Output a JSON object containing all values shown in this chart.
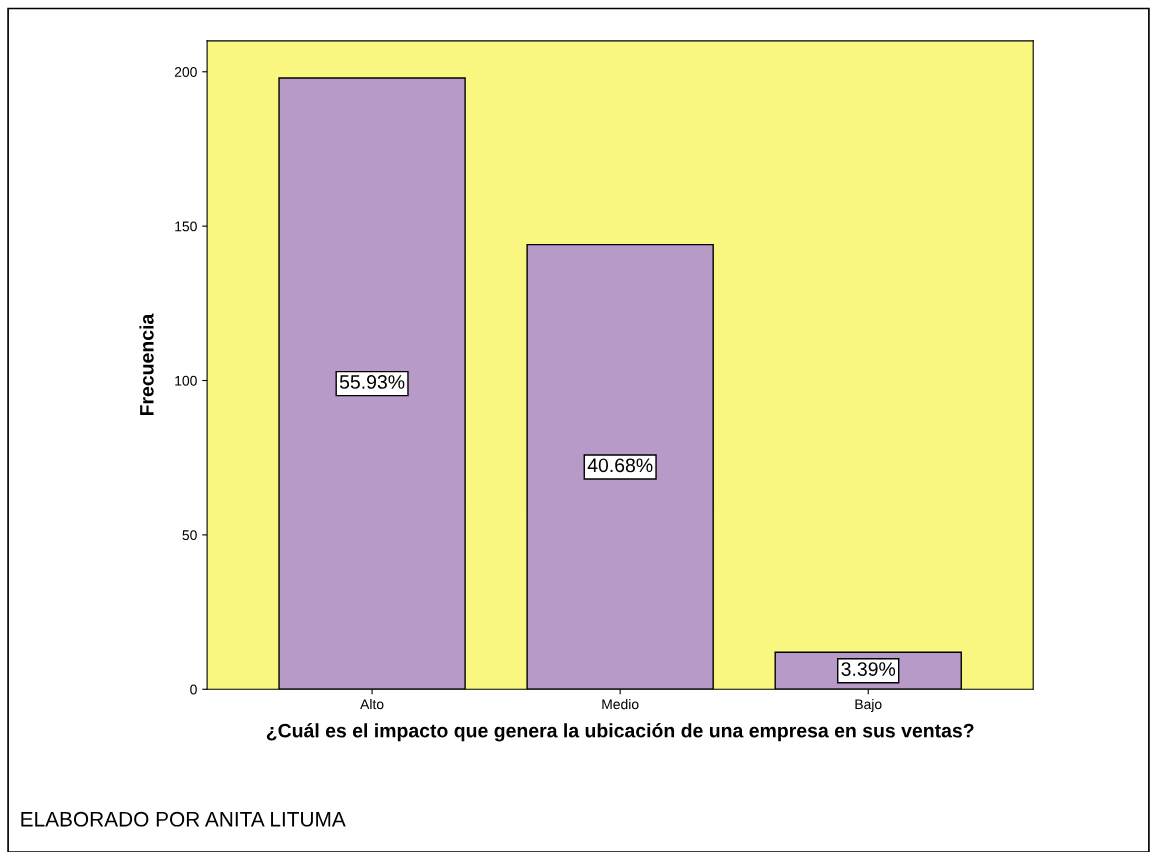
{
  "chart_data": {
    "type": "bar",
    "xlabel": "¿Cuál es el impacto que genera la ubicación de una empresa en sus ventas?",
    "ylabel": "Frecuencia",
    "categories": [
      "Alto",
      "Medio",
      "Bajo"
    ],
    "values": [
      198,
      144,
      12
    ],
    "color": "#b89ac9",
    "ylim": [
      0,
      210
    ],
    "yticks": [
      0,
      50,
      100,
      150,
      200
    ],
    "grid": false,
    "legend": false,
    "annotations": [
      "55.93%",
      "40.68%",
      "3.39%",
      "ELABORADO POR ANITA LITUMA"
    ]
  }
}
